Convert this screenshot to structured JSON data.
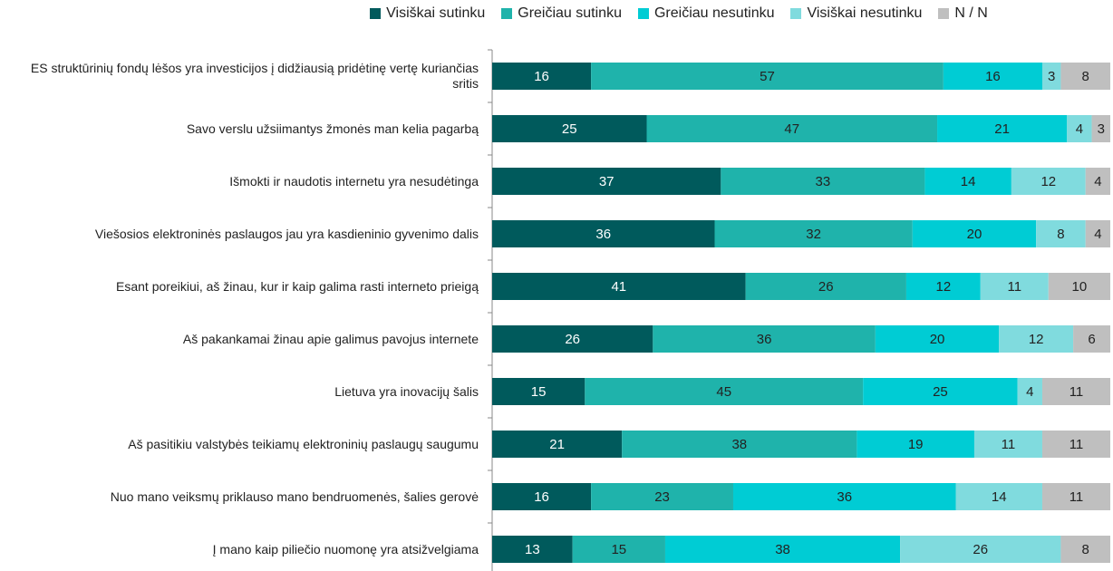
{
  "chart_data": {
    "type": "stacked-bar-horizontal",
    "categories": [
      "ES struktūrinių fondų lėšos yra investicijos į didžiausią pridėtinę vertę kuriančias sritis",
      "Savo verslu užsiimantys žmonės man kelia pagarbą",
      "Išmokti ir naudotis internetu yra nesudėtinga",
      "Viešosios elektroninės paslaugos jau yra kasdieninio gyvenimo dalis",
      "Esant poreikiui, aš žinau, kur ir kaip galima rasti interneto prieigą",
      "Aš pakankamai žinau apie galimus pavojus internete",
      "Lietuva yra inovacijų šalis",
      "Aš pasitikiu valstybės teikiamų elektroninių paslaugų saugumu",
      "Nuo mano veiksmų priklauso mano bendruomenės, šalies gerovė",
      "Į mano kaip piliečio nuomonę yra atsižvelgiama"
    ],
    "series": [
      {
        "name": "Visiškai sutinku",
        "color": "#005a5c",
        "values": [
          16,
          25,
          37,
          36,
          41,
          26,
          15,
          21,
          16,
          13
        ]
      },
      {
        "name": "Greičiau sutinku",
        "color": "#1fb3ab",
        "values": [
          57,
          47,
          33,
          32,
          26,
          36,
          45,
          38,
          23,
          15
        ]
      },
      {
        "name": "Greičiau nesutinku",
        "color": "#00ccd4",
        "values": [
          16,
          21,
          14,
          20,
          12,
          20,
          25,
          19,
          36,
          38
        ]
      },
      {
        "name": "Visiškai nesutinku",
        "color": "#80dbde",
        "values": [
          3,
          4,
          12,
          8,
          11,
          12,
          4,
          11,
          14,
          26
        ]
      },
      {
        "name": "N / N",
        "color": "#bfbfbf",
        "values": [
          8,
          3,
          4,
          4,
          10,
          6,
          11,
          11,
          11,
          8
        ]
      }
    ],
    "xlim": [
      0,
      100
    ],
    "legend": "top"
  }
}
